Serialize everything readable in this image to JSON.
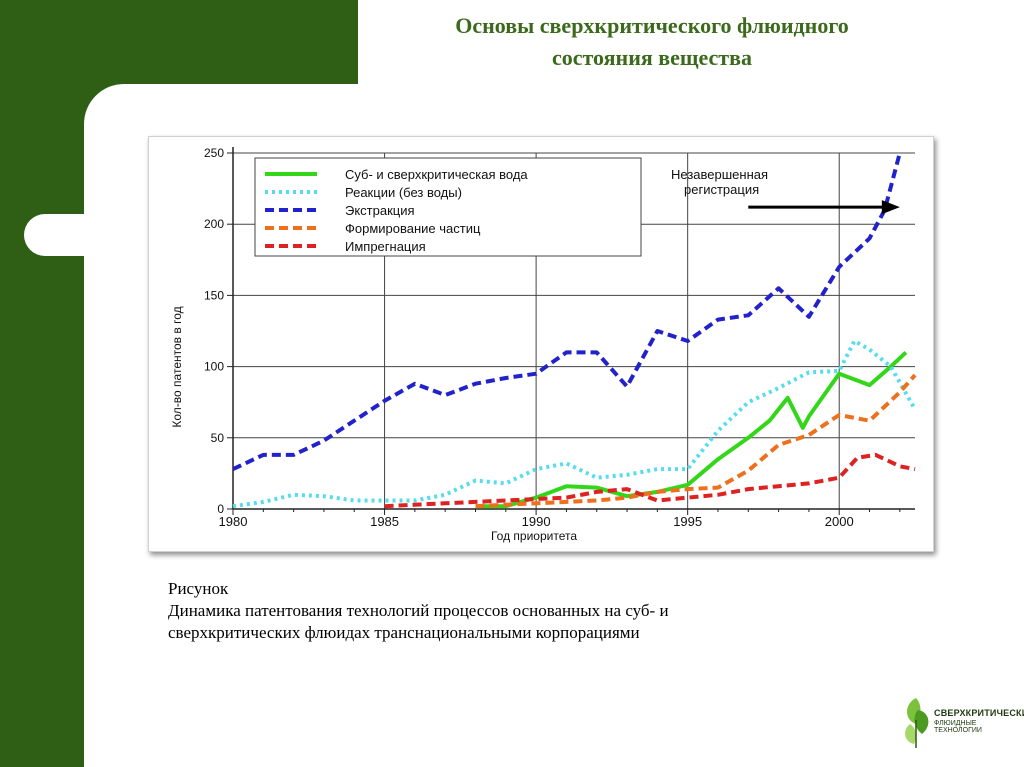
{
  "slide": {
    "title_line1": "Основы сверхкритического флюидного",
    "title_line2": "состояния вещества",
    "caption_line1": "Рисунок",
    "caption_line2": "Динамика патентования технологий процессов основанных на суб- и",
    "caption_line3": "сверхкритических флюидах транснациональными корпорациями"
  },
  "logo": {
    "brand": "СВЕРХКРИТИЧЕСКИЕ",
    "sub": "ФЛЮИДНЫЕ ТЕХНОЛОГИИ"
  },
  "colors": {
    "background": "#2f5f14",
    "title": "#3c6a1c"
  },
  "chart_data": {
    "type": "line",
    "xlabel": "Год приоритета",
    "ylabel": "Кол-во патентов в год",
    "xlim": [
      1980,
      2002.5
    ],
    "ylim": [
      0,
      250
    ],
    "x_ticks": [
      1980,
      1985,
      1990,
      1995,
      2000
    ],
    "y_ticks": [
      0,
      50,
      100,
      150,
      200,
      250
    ],
    "grid": "horizontal",
    "legend_position": "top-left",
    "annotation": {
      "text_line1": "Незавершенная",
      "text_line2": "регистрация",
      "arrow_from_x": 1997,
      "arrow_to_x": 2002,
      "y": 212
    },
    "series": [
      {
        "name": "Суб- и сверхкритическая вода",
        "color": "#33d619",
        "style": "solid",
        "points": [
          [
            1988,
            2
          ],
          [
            1989,
            2
          ],
          [
            1990,
            8
          ],
          [
            1991,
            16
          ],
          [
            1992,
            15
          ],
          [
            1993,
            9
          ],
          [
            1994,
            12
          ],
          [
            1995,
            17
          ],
          [
            1996,
            35
          ],
          [
            1997,
            50
          ],
          [
            1997.7,
            62
          ],
          [
            1998.3,
            78
          ],
          [
            1998.8,
            57
          ],
          [
            1999,
            65
          ],
          [
            2000,
            95
          ],
          [
            2001,
            87
          ],
          [
            2001.7,
            100
          ],
          [
            2002.2,
            110
          ]
        ]
      },
      {
        "name": "Реакции (без воды)",
        "color": "#55ddee",
        "style": "dotted",
        "points": [
          [
            1980,
            2
          ],
          [
            1981,
            5
          ],
          [
            1982,
            10
          ],
          [
            1983,
            9
          ],
          [
            1984,
            6
          ],
          [
            1985,
            6
          ],
          [
            1986,
            6
          ],
          [
            1987,
            10
          ],
          [
            1988,
            20
          ],
          [
            1989,
            18
          ],
          [
            1990,
            28
          ],
          [
            1991,
            32
          ],
          [
            1992,
            22
          ],
          [
            1993,
            24
          ],
          [
            1994,
            28
          ],
          [
            1995,
            28
          ],
          [
            1996,
            55
          ],
          [
            1997,
            75
          ],
          [
            1998,
            85
          ],
          [
            1999,
            96
          ],
          [
            2000,
            97
          ],
          [
            2000.5,
            118
          ],
          [
            2001,
            112
          ],
          [
            2001.7,
            100
          ],
          [
            2002.5,
            70
          ]
        ]
      },
      {
        "name": "Экстракция",
        "color": "#2222cc",
        "style": "dashed",
        "points": [
          [
            1980,
            28
          ],
          [
            1981,
            38
          ],
          [
            1982,
            38
          ],
          [
            1983,
            48
          ],
          [
            1984,
            62
          ],
          [
            1985,
            76
          ],
          [
            1986,
            88
          ],
          [
            1987,
            80
          ],
          [
            1988,
            88
          ],
          [
            1989,
            92
          ],
          [
            1990,
            95
          ],
          [
            1991,
            110
          ],
          [
            1992,
            110
          ],
          [
            1993,
            86
          ],
          [
            1994,
            125
          ],
          [
            1995,
            118
          ],
          [
            1996,
            133
          ],
          [
            1997,
            136
          ],
          [
            1998,
            155
          ],
          [
            1999,
            135
          ],
          [
            2000,
            170
          ],
          [
            2001,
            190
          ],
          [
            2001.5,
            210
          ],
          [
            2002,
            250
          ]
        ]
      },
      {
        "name": "Формирование частиц",
        "color": "#ee6f1c",
        "style": "dashed",
        "points": [
          [
            1988,
            2
          ],
          [
            1989,
            3
          ],
          [
            1990,
            4
          ],
          [
            1991,
            5
          ],
          [
            1992,
            6
          ],
          [
            1993,
            8
          ],
          [
            1994,
            12
          ],
          [
            1995,
            14
          ],
          [
            1996,
            15
          ],
          [
            1997,
            27
          ],
          [
            1998,
            45
          ],
          [
            1999,
            52
          ],
          [
            2000,
            66
          ],
          [
            2001,
            62
          ],
          [
            2001.5,
            72
          ],
          [
            2002,
            82
          ],
          [
            2002.5,
            94
          ]
        ]
      },
      {
        "name": "Импрегнация",
        "color": "#dd2222",
        "style": "dashed",
        "points": [
          [
            1985,
            2
          ],
          [
            1986,
            3
          ],
          [
            1987,
            4
          ],
          [
            1988,
            5
          ],
          [
            1989,
            6
          ],
          [
            1990,
            7
          ],
          [
            1991,
            8
          ],
          [
            1992,
            12
          ],
          [
            1993,
            14
          ],
          [
            1994,
            6
          ],
          [
            1995,
            8
          ],
          [
            1996,
            10
          ],
          [
            1997,
            14
          ],
          [
            1998,
            16
          ],
          [
            1999,
            18
          ],
          [
            2000,
            22
          ],
          [
            2000.6,
            36
          ],
          [
            2001.2,
            38
          ],
          [
            2002,
            30
          ],
          [
            2002.5,
            28
          ]
        ]
      }
    ]
  }
}
